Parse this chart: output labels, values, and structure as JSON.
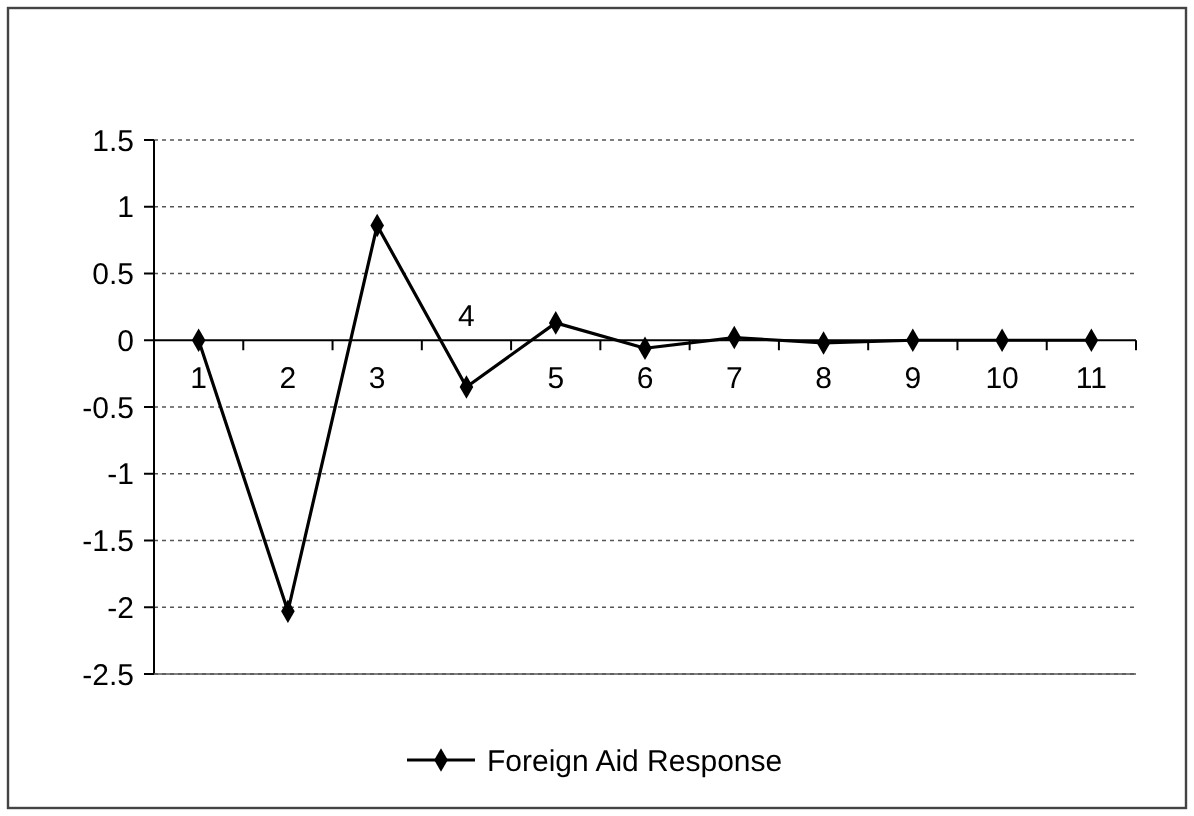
{
  "chart_data": {
    "type": "line",
    "categories": [
      "1",
      "2",
      "3",
      "4",
      "5",
      "6",
      "7",
      "8",
      "9",
      "10",
      "11"
    ],
    "series": [
      {
        "name": "Foreign Aid Response",
        "color": "#000000",
        "values": [
          0,
          -2.03,
          0.86,
          -0.35,
          0.13,
          -0.06,
          0.02,
          -0.02,
          0,
          0,
          0
        ]
      }
    ],
    "ylim": [
      -2.5,
      1.5
    ],
    "yticks": [
      -2.5,
      -2,
      -1.5,
      -1,
      -0.5,
      0,
      0.5,
      1,
      1.5
    ],
    "grid": "y",
    "legend": "bottom",
    "marker": "diamond",
    "line_style": "solid"
  }
}
